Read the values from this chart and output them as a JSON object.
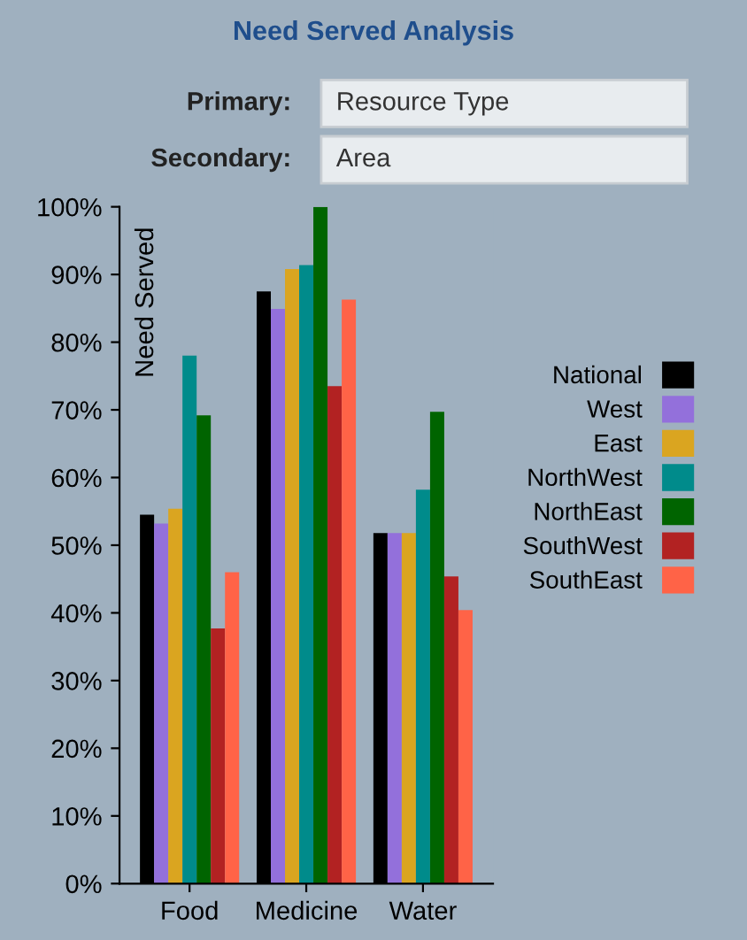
{
  "chart_data": {
    "type": "bar",
    "title": "Need Served Analysis",
    "ylabel": "Need Served",
    "annotations": [
      "Primary:",
      "Resource Type",
      "Secondary:",
      "Area"
    ],
    "categories": [
      "Food",
      "Medicine",
      "Water"
    ],
    "series": [
      {
        "name": "National",
        "color": "#000000",
        "values": [
          54.5,
          87.5,
          51.8
        ]
      },
      {
        "name": "West",
        "color": "#9370db",
        "values": [
          53.2,
          84.9,
          51.8
        ]
      },
      {
        "name": "East",
        "color": "#daa520",
        "values": [
          55.4,
          90.8,
          51.8
        ]
      },
      {
        "name": "NorthWest",
        "color": "#008b8b",
        "values": [
          78,
          91.4,
          58.2
        ]
      },
      {
        "name": "NorthEast",
        "color": "#006400",
        "values": [
          69.2,
          100,
          69.7
        ]
      },
      {
        "name": "SouthWest",
        "color": "#b22222",
        "values": [
          37.7,
          73.5,
          45.4
        ]
      },
      {
        "name": "SouthEast",
        "color": "#ff6347",
        "values": [
          46,
          86.3,
          40.4
        ]
      }
    ],
    "ylim": [
      0,
      100
    ],
    "yticks": [
      {
        "value": 0,
        "label": "0%"
      },
      {
        "value": 10,
        "label": "10%"
      },
      {
        "value": 20,
        "label": "20%"
      },
      {
        "value": 30,
        "label": "30%"
      },
      {
        "value": 40,
        "label": "40%"
      },
      {
        "value": 50,
        "label": "50%"
      },
      {
        "value": 60,
        "label": "60%"
      },
      {
        "value": 70,
        "label": "70%"
      },
      {
        "value": 80,
        "label": "80%"
      },
      {
        "value": 90,
        "label": "90%"
      },
      {
        "value": 100,
        "label": "100%"
      }
    ],
    "grid": false,
    "legend": "right"
  }
}
